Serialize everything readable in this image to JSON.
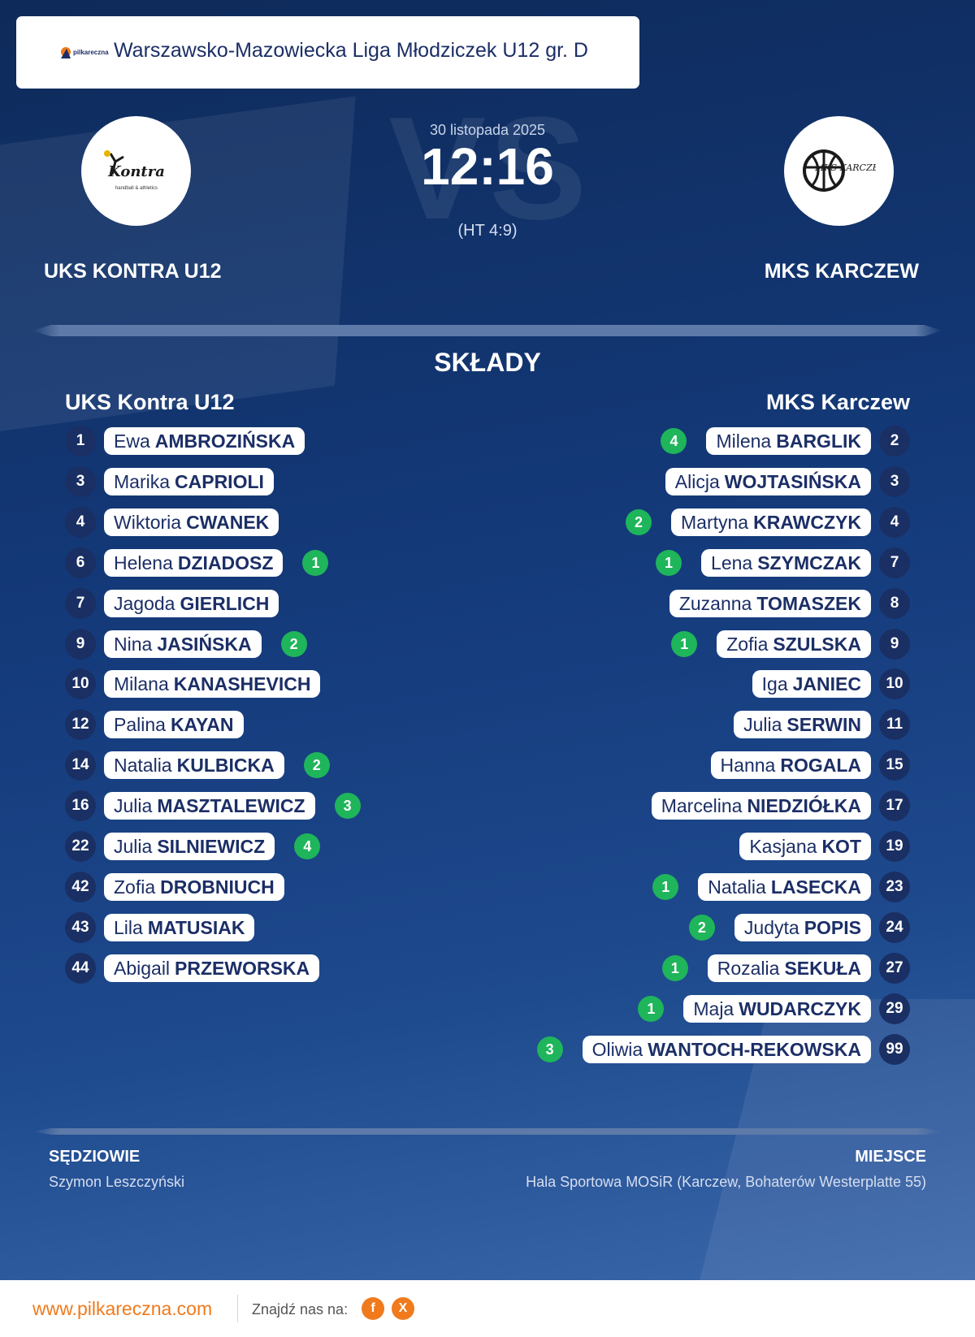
{
  "league": {
    "title": "Warszawsko-Mazowiecka Liga Młodziczek U12 gr. D",
    "logo_text": "pilkareczna"
  },
  "match": {
    "date": "30 listopada 2025",
    "score": "12:16",
    "halftime": "(HT 4:9)",
    "vs_watermark": "VS"
  },
  "home": {
    "name": "UKS KONTRA U12",
    "squad_title": "UKS Kontra U12",
    "logo_text": "Kontra",
    "logo_subtext": "handball & athletics",
    "players": [
      {
        "number": "1",
        "first": "Ewa",
        "last": "AMBROZIŃSKA",
        "goals": ""
      },
      {
        "number": "3",
        "first": "Marika",
        "last": "CAPRIOLI",
        "goals": ""
      },
      {
        "number": "4",
        "first": "Wiktoria",
        "last": "CWANEK",
        "goals": ""
      },
      {
        "number": "6",
        "first": "Helena",
        "last": "DZIADOSZ",
        "goals": "1"
      },
      {
        "number": "7",
        "first": "Jagoda",
        "last": "GIERLICH",
        "goals": ""
      },
      {
        "number": "9",
        "first": "Nina",
        "last": "JASIŃSKA",
        "goals": "2"
      },
      {
        "number": "10",
        "first": "Milana",
        "last": "KANASHEVICH",
        "goals": ""
      },
      {
        "number": "12",
        "first": "Palina",
        "last": "KAYAN",
        "goals": ""
      },
      {
        "number": "14",
        "first": "Natalia",
        "last": "KULBICKA",
        "goals": "2"
      },
      {
        "number": "16",
        "first": "Julia",
        "last": "MASZTALEWICZ",
        "goals": "3"
      },
      {
        "number": "22",
        "first": "Julia",
        "last": "SILNIEWICZ",
        "goals": "4"
      },
      {
        "number": "42",
        "first": "Zofia",
        "last": "DROBNIUCH",
        "goals": ""
      },
      {
        "number": "43",
        "first": "Lila",
        "last": "MATUSIAK",
        "goals": ""
      },
      {
        "number": "44",
        "first": "Abigail",
        "last": "PRZEWORSKA",
        "goals": ""
      }
    ]
  },
  "away": {
    "name": "MKS KARCZEW",
    "squad_title": "MKS Karczew",
    "logo_text": "MKS KARCZEW",
    "players": [
      {
        "number": "2",
        "first": "Milena",
        "last": "BARGLIK",
        "goals": "4"
      },
      {
        "number": "3",
        "first": "Alicja",
        "last": "WOJTASIŃSKA",
        "goals": ""
      },
      {
        "number": "4",
        "first": "Martyna",
        "last": "KRAWCZYK",
        "goals": "2"
      },
      {
        "number": "7",
        "first": "Lena",
        "last": "SZYMCZAK",
        "goals": "1"
      },
      {
        "number": "8",
        "first": "Zuzanna",
        "last": "TOMASZEK",
        "goals": ""
      },
      {
        "number": "9",
        "first": "Zofia",
        "last": "SZULSKA",
        "goals": "1"
      },
      {
        "number": "10",
        "first": "Iga",
        "last": "JANIEC",
        "goals": ""
      },
      {
        "number": "11",
        "first": "Julia",
        "last": "SERWIN",
        "goals": ""
      },
      {
        "number": "15",
        "first": "Hanna",
        "last": "ROGALA",
        "goals": ""
      },
      {
        "number": "17",
        "first": "Marcelina",
        "last": "NIEDZIÓŁKA",
        "goals": ""
      },
      {
        "number": "19",
        "first": "Kasjana",
        "last": "KOT",
        "goals": ""
      },
      {
        "number": "23",
        "first": "Natalia",
        "last": "LASECKA",
        "goals": "1"
      },
      {
        "number": "24",
        "first": "Judyta",
        "last": "POPIS",
        "goals": "2"
      },
      {
        "number": "27",
        "first": "Rozalia",
        "last": "SEKUŁA",
        "goals": "1"
      },
      {
        "number": "29",
        "first": "Maja",
        "last": "WUDARCZYK",
        "goals": "1"
      },
      {
        "number": "99",
        "first": "Oliwia",
        "last": "WANTOCH-REKOWSKA",
        "goals": "3"
      }
    ]
  },
  "squads_title": "SKŁADY",
  "referees": {
    "label": "SĘDZIOWIE",
    "value": "Szymon Leszczyński"
  },
  "venue": {
    "label": "MIEJSCE",
    "value": "Hala Sportowa MOSiR (Karczew, Bohaterów Westerplatte 55)"
  },
  "footer": {
    "site": "www.pilkareczna.com",
    "find_us": "Znajdź nas na:",
    "facebook": "f",
    "x": "X"
  },
  "colors": {
    "navy": "#1a2f63",
    "goal_green": "#1fb55a",
    "brand_orange": "#f07a1c"
  }
}
